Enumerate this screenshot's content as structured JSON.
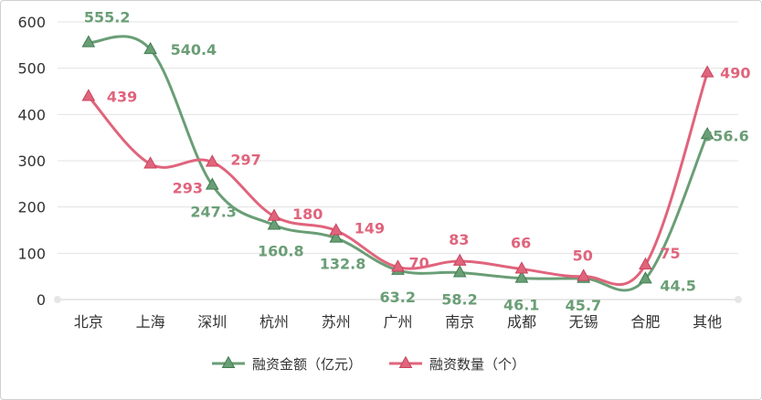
{
  "chart_data": {
    "type": "line",
    "title": "",
    "xlabel": "",
    "ylabel": "",
    "categories": [
      "北京",
      "上海",
      "深圳",
      "杭州",
      "苏州",
      "广州",
      "南京",
      "成都",
      "无锡",
      "合肥",
      "其他"
    ],
    "yticks": [
      0,
      100,
      200,
      300,
      400,
      500,
      600
    ],
    "ylim": [
      0,
      600
    ],
    "grid": true,
    "smooth": true,
    "legend_position": "bottom",
    "series": [
      {
        "name": "融资金额（亿元）",
        "color": "#6a9e76",
        "marker": "triangle",
        "values": [
          555.2,
          540.4,
          247.3,
          160.8,
          132.8,
          63.2,
          58.2,
          46.1,
          45.7,
          44.5,
          356.6
        ],
        "labels": [
          "555.2",
          "540.4",
          "247.3",
          "160.8",
          "132.8",
          "63.2",
          "58.2",
          "46.1",
          "45.7",
          "44.5",
          "356.6"
        ]
      },
      {
        "name": "融资数量（个）",
        "color": "#e0647c",
        "marker": "triangle",
        "values": [
          439,
          293,
          297,
          180,
          149,
          70,
          83,
          66,
          50,
          75,
          490
        ],
        "labels": [
          "439",
          "293",
          "297",
          "180",
          "149",
          "70",
          "83",
          "66",
          "50",
          "75",
          "490"
        ]
      }
    ]
  }
}
